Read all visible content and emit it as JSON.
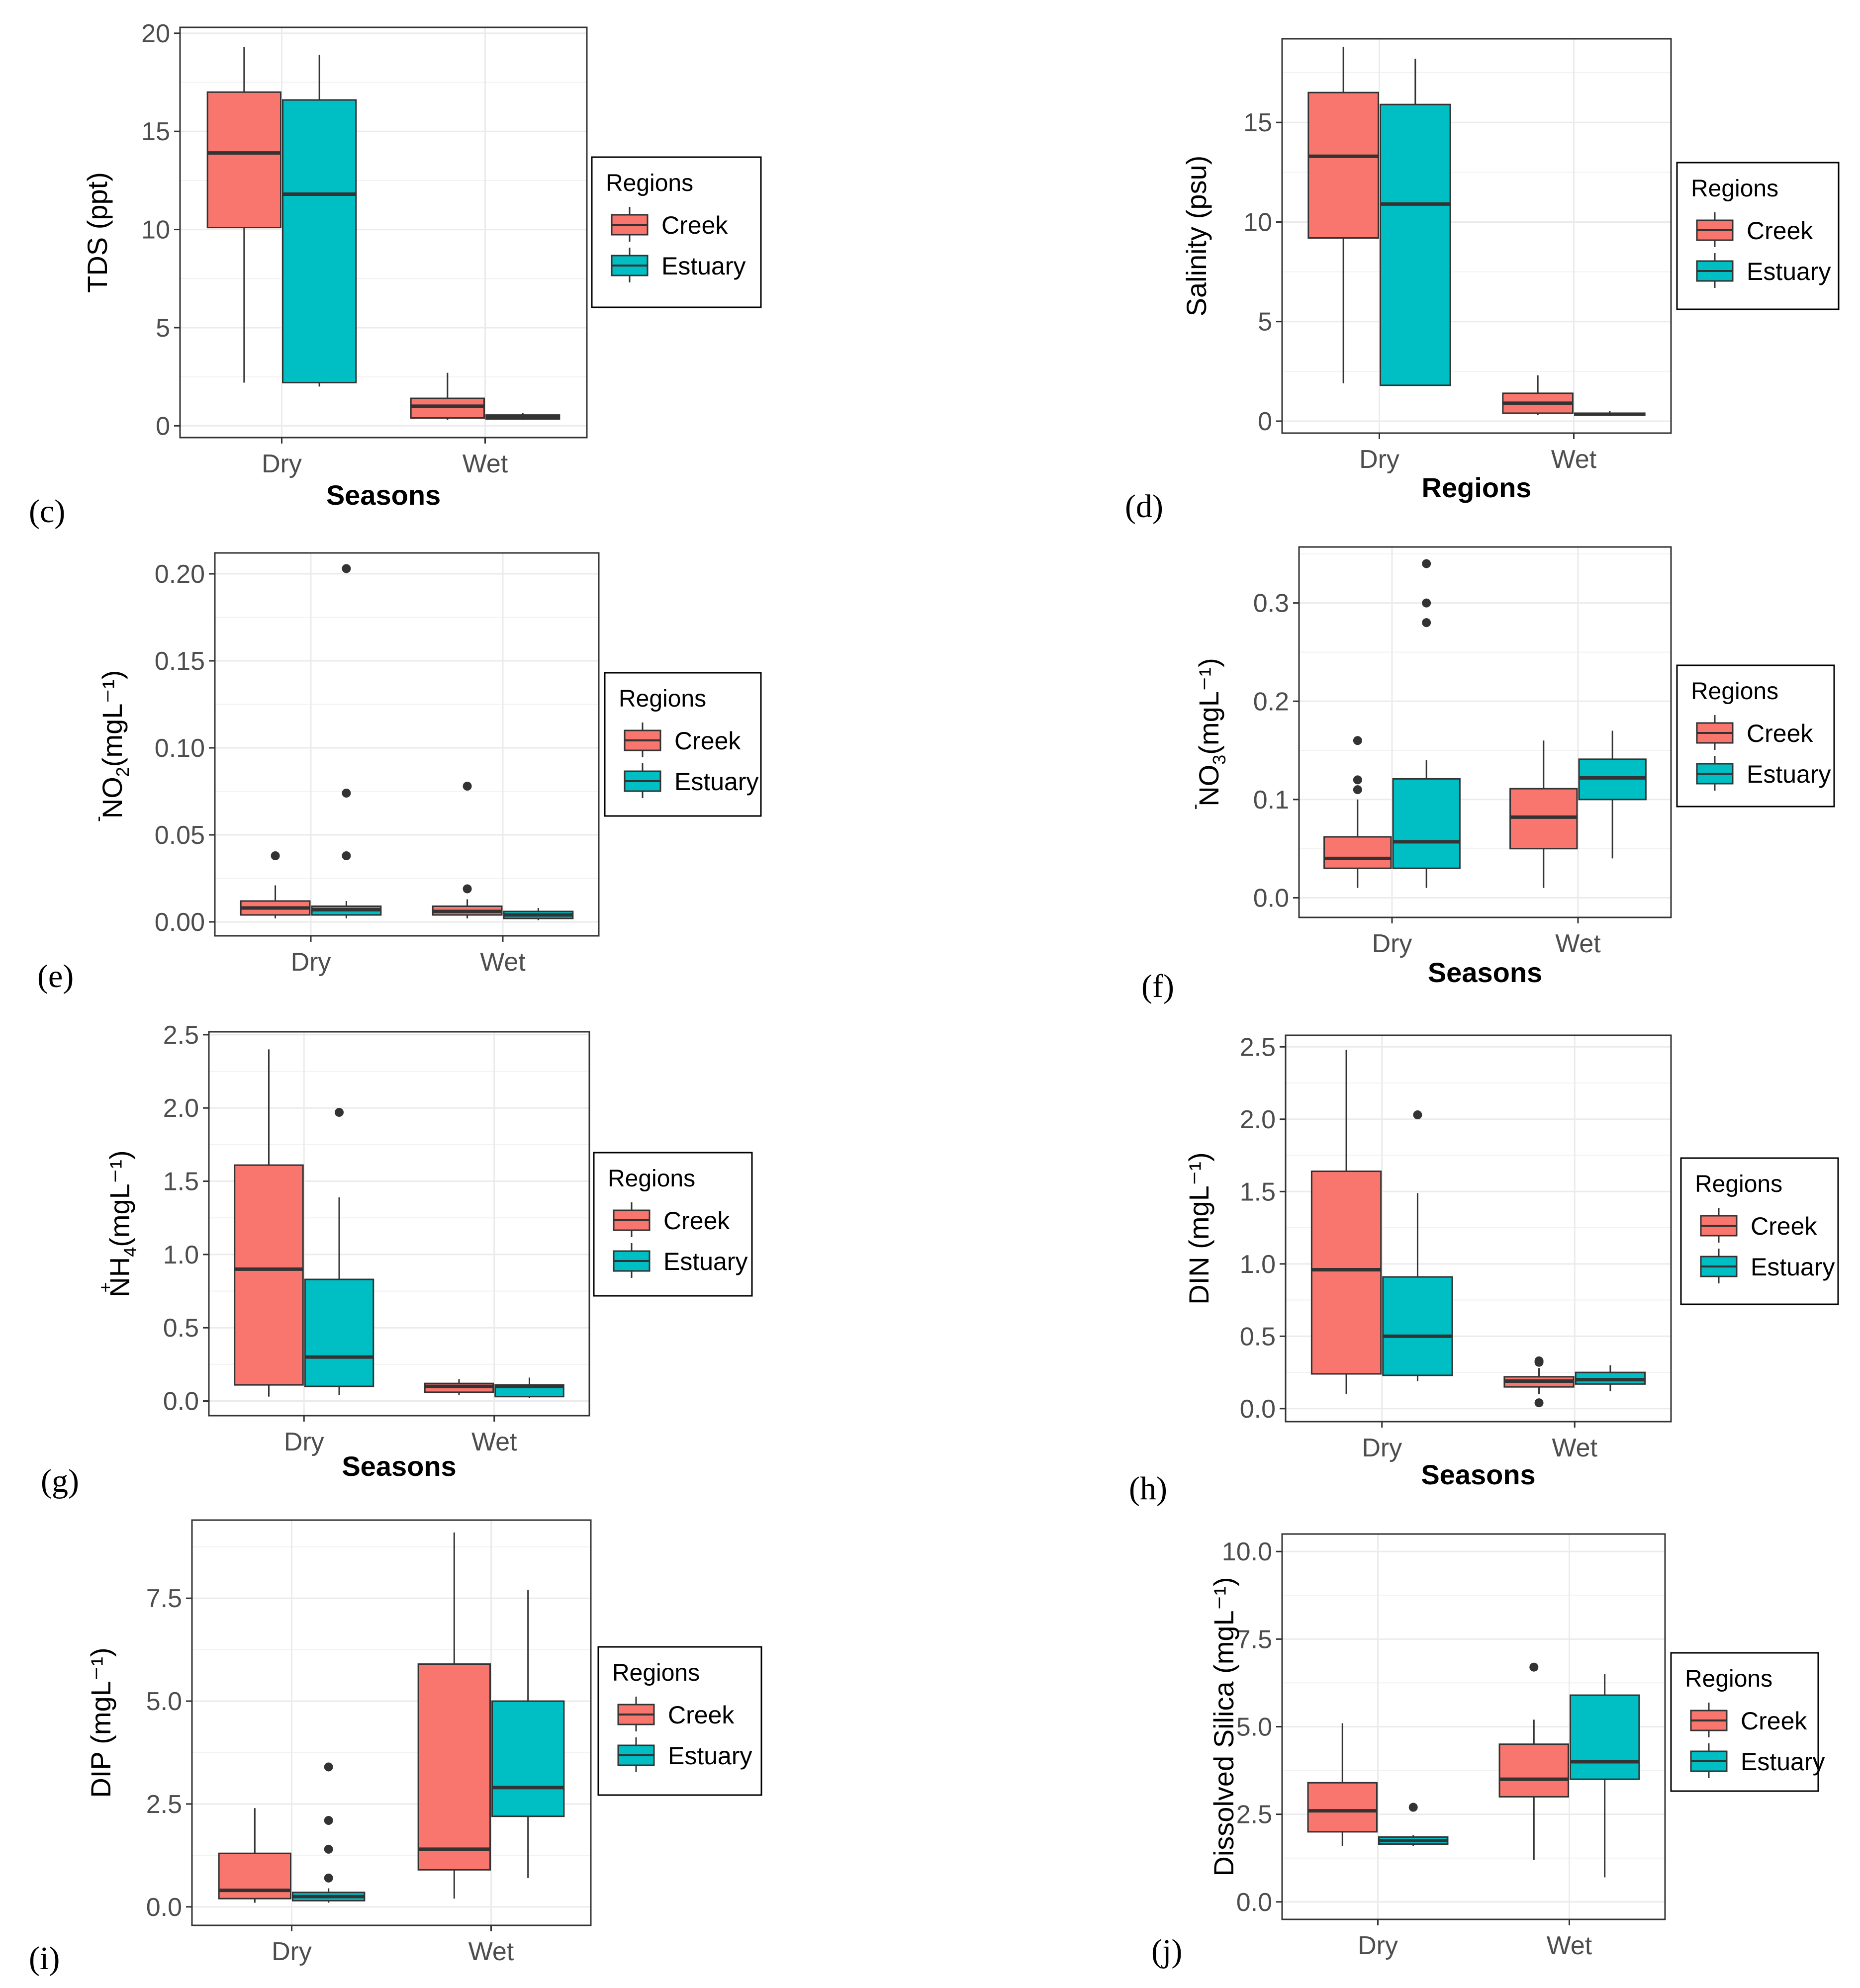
{
  "legend": {
    "title": "Regions",
    "items": [
      {
        "label": "Creek",
        "color": "#F8766D"
      },
      {
        "label": "Estuary",
        "color": "#00BFC4"
      }
    ]
  },
  "chart_data": [
    {
      "panel": "(c)",
      "type": "boxplot",
      "ylabel_main": "TDS (ppt)",
      "ylabel_sub": "",
      "ylabel_tail": "",
      "xlabel": "Seasons",
      "categories": [
        "Dry",
        "Wet"
      ],
      "ylim": [
        -0.6,
        20.3
      ],
      "yticks": [
        "0",
        "5",
        "10",
        "15",
        "20"
      ],
      "ytick_values": [
        0,
        5,
        10,
        15,
        20
      ],
      "series": [
        {
          "name": "Creek",
          "boxes": [
            {
              "min": 2.2,
              "q1": 10.1,
              "median": 13.9,
              "q3": 17.0,
              "max": 19.3,
              "outliers": []
            },
            {
              "min": 0.3,
              "q1": 0.4,
              "median": 1.0,
              "q3": 1.4,
              "max": 2.7,
              "outliers": []
            }
          ]
        },
        {
          "name": "Estuary",
          "boxes": [
            {
              "min": 2.0,
              "q1": 2.2,
              "median": 11.8,
              "q3": 16.6,
              "max": 18.9,
              "outliers": []
            },
            {
              "min": 0.3,
              "q1": 0.35,
              "median": 0.45,
              "q3": 0.55,
              "max": 0.65,
              "outliers": []
            }
          ]
        }
      ]
    },
    {
      "panel": "(d)",
      "type": "boxplot",
      "ylabel_main": "Salinity (psu)",
      "ylabel_sub": "",
      "ylabel_tail": "",
      "xlabel": "Regions",
      "categories": [
        "Dry",
        "Wet"
      ],
      "ylim": [
        -0.6,
        19.2
      ],
      "yticks": [
        "0",
        "5",
        "10",
        "15"
      ],
      "ytick_values": [
        0,
        5,
        10,
        15
      ],
      "series": [
        {
          "name": "Creek",
          "boxes": [
            {
              "min": 1.9,
              "q1": 9.2,
              "median": 13.3,
              "q3": 16.5,
              "max": 18.8,
              "outliers": []
            },
            {
              "min": 0.3,
              "q1": 0.4,
              "median": 0.9,
              "q3": 1.4,
              "max": 2.3,
              "outliers": []
            }
          ]
        },
        {
          "name": "Estuary",
          "boxes": [
            {
              "min": 1.8,
              "q1": 1.8,
              "median": 10.9,
              "q3": 15.9,
              "max": 18.2,
              "outliers": []
            },
            {
              "min": 0.25,
              "q1": 0.3,
              "median": 0.35,
              "q3": 0.4,
              "max": 0.5,
              "outliers": []
            }
          ]
        }
      ]
    },
    {
      "panel": "(e)",
      "type": "boxplot",
      "ylabel_main": "NO",
      "ylabel_sub": "2",
      "ylabel_tail": "(mgL⁻¹)",
      "xlabel": "",
      "categories": [
        "Dry",
        "Wet"
      ],
      "ylim": [
        -0.008,
        0.212
      ],
      "yticks": [
        "0.00",
        "0.05",
        "0.10",
        "0.15",
        "0.20"
      ],
      "ytick_values": [
        0,
        0.05,
        0.1,
        0.15,
        0.2
      ],
      "series": [
        {
          "name": "Creek",
          "boxes": [
            {
              "min": 0.002,
              "q1": 0.004,
              "median": 0.008,
              "q3": 0.012,
              "max": 0.021,
              "outliers": [
                0.038
              ]
            },
            {
              "min": 0.002,
              "q1": 0.004,
              "median": 0.006,
              "q3": 0.009,
              "max": 0.013,
              "outliers": [
                0.019,
                0.078
              ]
            }
          ]
        },
        {
          "name": "Estuary",
          "boxes": [
            {
              "min": 0.002,
              "q1": 0.004,
              "median": 0.007,
              "q3": 0.009,
              "max": 0.012,
              "outliers": [
                0.038,
                0.074,
                0.203
              ]
            },
            {
              "min": 0.001,
              "q1": 0.002,
              "median": 0.004,
              "q3": 0.006,
              "max": 0.008,
              "outliers": []
            }
          ]
        }
      ]
    },
    {
      "panel": "(f)",
      "type": "boxplot",
      "ylabel_main": "NO",
      "ylabel_sub": "3",
      "ylabel_tail": "(mgL⁻¹)",
      "xlabel": "Seasons",
      "categories": [
        "Dry",
        "Wet"
      ],
      "ylim": [
        -0.02,
        0.357
      ],
      "yticks": [
        "0.0",
        "0.1",
        "0.2",
        "0.3"
      ],
      "ytick_values": [
        0,
        0.1,
        0.2,
        0.3
      ],
      "series": [
        {
          "name": "Creek",
          "boxes": [
            {
              "min": 0.01,
              "q1": 0.03,
              "median": 0.04,
              "q3": 0.062,
              "max": 0.1,
              "outliers": [
                0.11,
                0.12,
                0.16
              ]
            },
            {
              "min": 0.01,
              "q1": 0.05,
              "median": 0.082,
              "q3": 0.111,
              "max": 0.16,
              "outliers": []
            }
          ]
        },
        {
          "name": "Estuary",
          "boxes": [
            {
              "min": 0.01,
              "q1": 0.03,
              "median": 0.057,
              "q3": 0.121,
              "max": 0.14,
              "outliers": [
                0.28,
                0.3,
                0.34
              ]
            },
            {
              "min": 0.04,
              "q1": 0.1,
              "median": 0.122,
              "q3": 0.141,
              "max": 0.17,
              "outliers": []
            }
          ]
        }
      ]
    },
    {
      "panel": "(g)",
      "type": "boxplot",
      "ylabel_main": "NH",
      "ylabel_sub": "4",
      "ylabel_tail": "(mgL⁻¹)",
      "xlabel": "Seasons",
      "categories": [
        "Dry",
        "Wet"
      ],
      "ylim": [
        -0.1,
        2.52
      ],
      "yticks": [
        "0.0",
        "0.5",
        "1.0",
        "1.5",
        "2.0",
        "2.5"
      ],
      "ytick_values": [
        0,
        0.5,
        1,
        1.5,
        2,
        2.5
      ],
      "series": [
        {
          "name": "Creek",
          "boxes": [
            {
              "min": 0.03,
              "q1": 0.11,
              "median": 0.9,
              "q3": 1.61,
              "max": 2.4,
              "outliers": []
            },
            {
              "min": 0.04,
              "q1": 0.06,
              "median": 0.1,
              "q3": 0.12,
              "max": 0.15,
              "outliers": []
            }
          ]
        },
        {
          "name": "Estuary",
          "boxes": [
            {
              "min": 0.04,
              "q1": 0.1,
              "median": 0.3,
              "q3": 0.83,
              "max": 1.39,
              "outliers": [
                1.97
              ]
            },
            {
              "min": 0.02,
              "q1": 0.03,
              "median": 0.1,
              "q3": 0.11,
              "max": 0.16,
              "outliers": []
            }
          ]
        }
      ]
    },
    {
      "panel": "(h)",
      "type": "boxplot",
      "ylabel_main": "DIN (mgL⁻¹)",
      "ylabel_sub": "",
      "ylabel_tail": "",
      "xlabel": "Seasons",
      "categories": [
        "Dry",
        "Wet"
      ],
      "ylim": [
        -0.09,
        2.58
      ],
      "yticks": [
        "0.0",
        "0.5",
        "1.0",
        "1.5",
        "2.0",
        "2.5"
      ],
      "ytick_values": [
        0,
        0.5,
        1,
        1.5,
        2,
        2.5
      ],
      "series": [
        {
          "name": "Creek",
          "boxes": [
            {
              "min": 0.1,
              "q1": 0.24,
              "median": 0.96,
              "q3": 1.64,
              "max": 2.48,
              "outliers": []
            },
            {
              "min": 0.1,
              "q1": 0.15,
              "median": 0.19,
              "q3": 0.22,
              "max": 0.28,
              "outliers": [
                0.04,
                0.32,
                0.33
              ]
            }
          ]
        },
        {
          "name": "Estuary",
          "boxes": [
            {
              "min": 0.19,
              "q1": 0.23,
              "median": 0.5,
              "q3": 0.91,
              "max": 1.49,
              "outliers": [
                2.03
              ]
            },
            {
              "min": 0.12,
              "q1": 0.17,
              "median": 0.2,
              "q3": 0.25,
              "max": 0.3,
              "outliers": []
            }
          ]
        }
      ]
    },
    {
      "panel": "(i)",
      "type": "boxplot",
      "ylabel_main": "DIP (mgL⁻¹)",
      "ylabel_sub": "",
      "ylabel_tail": "",
      "xlabel": "",
      "categories": [
        "Dry",
        "Wet"
      ],
      "ylim": [
        -0.45,
        9.4
      ],
      "yticks": [
        "0.0",
        "2.5",
        "5.0",
        "7.5"
      ],
      "ytick_values": [
        0,
        2.5,
        5,
        7.5
      ],
      "series": [
        {
          "name": "Creek",
          "boxes": [
            {
              "min": 0.1,
              "q1": 0.2,
              "median": 0.4,
              "q3": 1.3,
              "max": 2.4,
              "outliers": []
            },
            {
              "min": 0.2,
              "q1": 0.9,
              "median": 1.4,
              "q3": 5.9,
              "max": 9.1,
              "outliers": []
            }
          ]
        },
        {
          "name": "Estuary",
          "boxes": [
            {
              "min": 0.1,
              "q1": 0.15,
              "median": 0.25,
              "q3": 0.35,
              "max": 0.45,
              "outliers": [
                0.7,
                1.4,
                2.1,
                3.4
              ]
            },
            {
              "min": 0.7,
              "q1": 2.2,
              "median": 2.9,
              "q3": 5.0,
              "max": 7.7,
              "outliers": []
            }
          ]
        }
      ]
    },
    {
      "panel": "(j)",
      "type": "boxplot",
      "ylabel_main": "Dissolved Silica (mgL⁻¹)",
      "ylabel_sub": "",
      "ylabel_tail": "",
      "xlabel": "",
      "categories": [
        "Dry",
        "Wet"
      ],
      "ylim": [
        -0.5,
        10.5
      ],
      "yticks": [
        "0.0",
        "2.5",
        "5.0",
        "7.5",
        "10.0"
      ],
      "ytick_values": [
        0,
        2.5,
        5,
        7.5,
        10
      ],
      "series": [
        {
          "name": "Creek",
          "boxes": [
            {
              "min": 1.6,
              "q1": 2.0,
              "median": 2.6,
              "q3": 3.4,
              "max": 5.1,
              "outliers": []
            },
            {
              "min": 1.2,
              "q1": 3.0,
              "median": 3.5,
              "q3": 4.5,
              "max": 5.2,
              "outliers": [
                6.7
              ]
            }
          ]
        },
        {
          "name": "Estuary",
          "boxes": [
            {
              "min": 1.6,
              "q1": 1.65,
              "median": 1.75,
              "q3": 1.85,
              "max": 1.9,
              "outliers": [
                2.7
              ]
            },
            {
              "min": 0.7,
              "q1": 3.5,
              "median": 4.0,
              "q3": 5.9,
              "max": 6.5,
              "outliers": []
            }
          ]
        }
      ]
    }
  ]
}
